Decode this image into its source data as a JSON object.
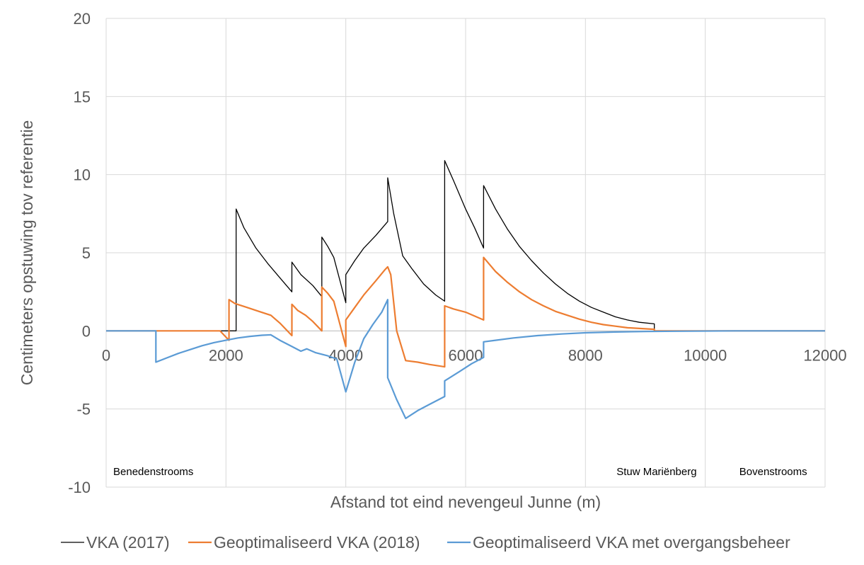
{
  "chart_data": {
    "type": "line",
    "title": "",
    "xlabel": "Afstand tot eind nevengeul Junne (m)",
    "ylabel": "Centimeters opstuwing tov referentie",
    "xlim": [
      0,
      12000
    ],
    "ylim": [
      -10,
      20
    ],
    "xticks": [
      0,
      2000,
      4000,
      6000,
      8000,
      10000,
      12000
    ],
    "yticks": [
      -10,
      -5,
      0,
      5,
      10,
      15,
      20
    ],
    "grid": true,
    "legend_position": "bottom",
    "annotations": [
      {
        "text": "Benedenstrooms",
        "x": 0,
        "y": -9
      },
      {
        "text": "Stuw Mariënberg",
        "x": 8400,
        "y": -9
      },
      {
        "text": "Bovenstrooms",
        "x": 10450,
        "y": -9
      }
    ],
    "series": [
      {
        "name": "VKA (2017)",
        "color": "#000000",
        "points": [
          [
            0,
            0
          ],
          [
            2170,
            0
          ],
          [
            2170,
            7.8
          ],
          [
            2300,
            6.6
          ],
          [
            2500,
            5.3
          ],
          [
            2700,
            4.3
          ],
          [
            2900,
            3.4
          ],
          [
            3100,
            2.5
          ],
          [
            3100,
            4.4
          ],
          [
            3250,
            3.6
          ],
          [
            3450,
            2.9
          ],
          [
            3600,
            2.2
          ],
          [
            3600,
            6.0
          ],
          [
            3700,
            5.4
          ],
          [
            3800,
            4.7
          ],
          [
            4000,
            1.8
          ],
          [
            4000,
            3.6
          ],
          [
            4150,
            4.5
          ],
          [
            4300,
            5.3
          ],
          [
            4500,
            6.1
          ],
          [
            4700,
            7.0
          ],
          [
            4700,
            9.8
          ],
          [
            4800,
            7.5
          ],
          [
            4950,
            4.8
          ],
          [
            5100,
            4.0
          ],
          [
            5300,
            3.0
          ],
          [
            5500,
            2.3
          ],
          [
            5650,
            1.9
          ],
          [
            5650,
            10.9
          ],
          [
            5800,
            9.6
          ],
          [
            6000,
            7.8
          ],
          [
            6150,
            6.6
          ],
          [
            6300,
            5.3
          ],
          [
            6300,
            9.3
          ],
          [
            6500,
            7.8
          ],
          [
            6700,
            6.5
          ],
          [
            6900,
            5.4
          ],
          [
            7100,
            4.5
          ],
          [
            7300,
            3.7
          ],
          [
            7500,
            3.0
          ],
          [
            7700,
            2.4
          ],
          [
            7900,
            1.9
          ],
          [
            8100,
            1.5
          ],
          [
            8300,
            1.2
          ],
          [
            8500,
            0.9
          ],
          [
            8700,
            0.7
          ],
          [
            8900,
            0.55
          ],
          [
            9150,
            0.45
          ],
          [
            9150,
            0
          ],
          [
            12000,
            0
          ]
        ]
      },
      {
        "name": "Geoptimaliseerd VKA (2018)",
        "color": "#ED7D31",
        "points": [
          [
            0,
            0
          ],
          [
            1900,
            0
          ],
          [
            2050,
            -0.6
          ],
          [
            2050,
            2.0
          ],
          [
            2150,
            1.75
          ],
          [
            2350,
            1.5
          ],
          [
            2550,
            1.25
          ],
          [
            2750,
            1.0
          ],
          [
            2900,
            0.5
          ],
          [
            3100,
            -0.3
          ],
          [
            3100,
            1.7
          ],
          [
            3200,
            1.3
          ],
          [
            3330,
            1.0
          ],
          [
            3450,
            0.6
          ],
          [
            3600,
            0.0
          ],
          [
            3600,
            2.8
          ],
          [
            3700,
            2.4
          ],
          [
            3800,
            1.9
          ],
          [
            4000,
            -1.0
          ],
          [
            4000,
            0.7
          ],
          [
            4150,
            1.5
          ],
          [
            4300,
            2.3
          ],
          [
            4500,
            3.2
          ],
          [
            4650,
            3.9
          ],
          [
            4700,
            4.1
          ],
          [
            4750,
            3.6
          ],
          [
            4850,
            0.0
          ],
          [
            5000,
            -1.9
          ],
          [
            5200,
            -2.0
          ],
          [
            5400,
            -2.15
          ],
          [
            5650,
            -2.3
          ],
          [
            5650,
            1.6
          ],
          [
            5800,
            1.4
          ],
          [
            6000,
            1.2
          ],
          [
            6300,
            0.7
          ],
          [
            6300,
            4.7
          ],
          [
            6500,
            3.8
          ],
          [
            6700,
            3.1
          ],
          [
            6900,
            2.5
          ],
          [
            7100,
            2.0
          ],
          [
            7300,
            1.6
          ],
          [
            7500,
            1.25
          ],
          [
            7700,
            1.0
          ],
          [
            7900,
            0.75
          ],
          [
            8100,
            0.55
          ],
          [
            8300,
            0.4
          ],
          [
            8500,
            0.3
          ],
          [
            8700,
            0.2
          ],
          [
            9150,
            0.1
          ],
          [
            9150,
            0
          ],
          [
            12000,
            0
          ]
        ]
      },
      {
        "name": "Geoptimaliseerd VKA met overgangsbeheer",
        "color": "#5B9BD5",
        "points": [
          [
            0,
            0
          ],
          [
            830,
            0
          ],
          [
            830,
            -2.0
          ],
          [
            1000,
            -1.75
          ],
          [
            1200,
            -1.45
          ],
          [
            1400,
            -1.2
          ],
          [
            1600,
            -0.95
          ],
          [
            1800,
            -0.75
          ],
          [
            2000,
            -0.6
          ],
          [
            2200,
            -0.45
          ],
          [
            2400,
            -0.35
          ],
          [
            2600,
            -0.28
          ],
          [
            2750,
            -0.25
          ],
          [
            2900,
            -0.6
          ],
          [
            3100,
            -1.0
          ],
          [
            3250,
            -1.3
          ],
          [
            3350,
            -1.15
          ],
          [
            3500,
            -1.4
          ],
          [
            3700,
            -1.6
          ],
          [
            3850,
            -1.8
          ],
          [
            4000,
            -3.9
          ],
          [
            4150,
            -2.0
          ],
          [
            4300,
            -0.5
          ],
          [
            4450,
            0.4
          ],
          [
            4600,
            1.2
          ],
          [
            4700,
            2.0
          ],
          [
            4700,
            -3.0
          ],
          [
            4850,
            -4.4
          ],
          [
            5000,
            -5.6
          ],
          [
            5200,
            -5.1
          ],
          [
            5400,
            -4.7
          ],
          [
            5650,
            -4.2
          ],
          [
            5650,
            -3.2
          ],
          [
            5900,
            -2.6
          ],
          [
            6100,
            -2.1
          ],
          [
            6300,
            -1.7
          ],
          [
            6300,
            -0.7
          ],
          [
            6500,
            -0.6
          ],
          [
            6800,
            -0.45
          ],
          [
            7200,
            -0.3
          ],
          [
            7600,
            -0.2
          ],
          [
            8000,
            -0.12
          ],
          [
            8500,
            -0.07
          ],
          [
            9000,
            -0.04
          ],
          [
            9500,
            -0.02
          ],
          [
            10500,
            0
          ],
          [
            12000,
            0
          ]
        ]
      }
    ]
  }
}
